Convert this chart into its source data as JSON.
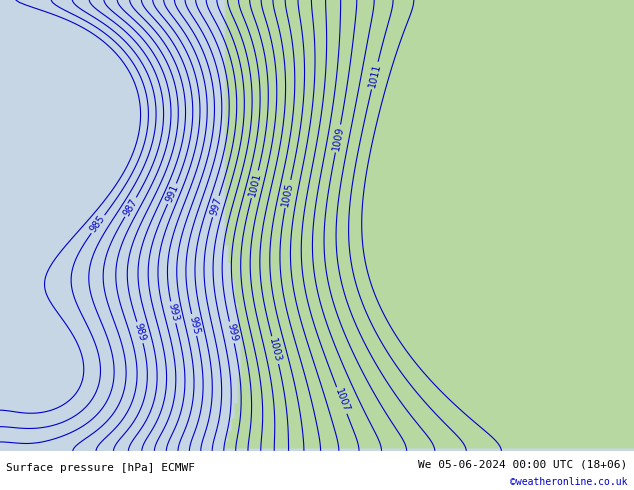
{
  "title_left": "Surface pressure [hPa] ECMWF",
  "title_right": "We 05-06-2024 00:00 UTC (18+06)",
  "credit": "©weatheronline.co.uk",
  "background_sea": "#d0dce8",
  "background_land": "#b8d8a0",
  "contour_color": "#0000cc",
  "contour_label_color": "#0000cc",
  "text_color": "#000000",
  "credit_color": "#0000cc",
  "bottom_bar_color": "#e8e8e8",
  "figsize": [
    6.34,
    4.9
  ],
  "dpi": 100,
  "pressure_min": 984,
  "pressure_max": 1012,
  "contour_interval": 1,
  "font_size_labels": 7,
  "font_size_bottom": 8,
  "font_size_credit": 7
}
